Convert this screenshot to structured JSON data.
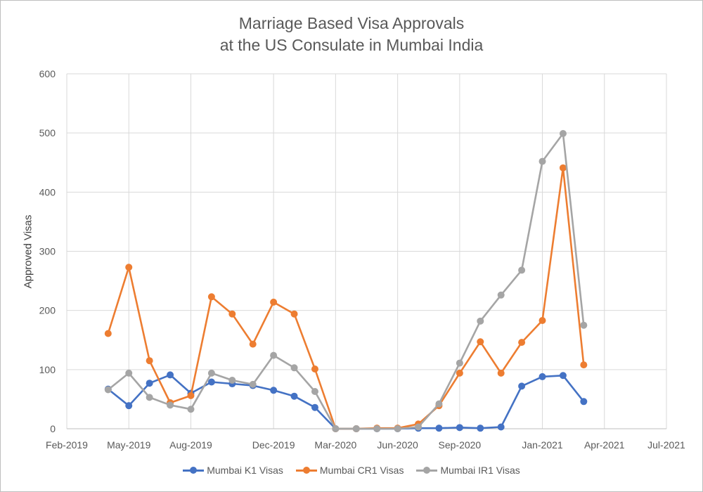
{
  "chart_data": {
    "type": "line",
    "title": [
      "Marriage Based Visa Approvals",
      "at the US Consulate in Mumbai India"
    ],
    "xlabel": "",
    "ylabel": "Approved Visas",
    "ylim": [
      0,
      600
    ],
    "yticks": [
      0,
      100,
      200,
      300,
      400,
      500,
      600
    ],
    "xlim": [
      "2019-02",
      "2021-07"
    ],
    "xticks": [
      {
        "date": "2019-02",
        "label": "Feb-2019"
      },
      {
        "date": "2019-05",
        "label": "May-2019"
      },
      {
        "date": "2019-08",
        "label": "Aug-2019"
      },
      {
        "date": "2019-12",
        "label": "Dec-2019"
      },
      {
        "date": "2020-03",
        "label": "Mar-2020"
      },
      {
        "date": "2020-06",
        "label": "Jun-2020"
      },
      {
        "date": "2020-09",
        "label": "Sep-2020"
      },
      {
        "date": "2021-01",
        "label": "Jan-2021"
      },
      {
        "date": "2021-04",
        "label": "Apr-2021"
      },
      {
        "date": "2021-07",
        "label": "Jul-2021"
      }
    ],
    "grid": "vertical and horizontal",
    "legend": "bottom",
    "x": [
      "2019-04",
      "2019-05",
      "2019-06",
      "2019-07",
      "2019-08",
      "2019-09",
      "2019-10",
      "2019-11",
      "2019-12",
      "2020-01",
      "2020-02",
      "2020-03",
      "2020-04",
      "2020-05",
      "2020-06",
      "2020-07",
      "2020-08",
      "2020-09",
      "2020-10",
      "2020-11",
      "2020-12",
      "2021-01",
      "2021-02",
      "2021-03"
    ],
    "series": [
      {
        "name": "Mumbai K1 Visas",
        "color": "#4472c4",
        "values": [
          67,
          39,
          77,
          91,
          60,
          79,
          76,
          73,
          65,
          55,
          36,
          0,
          0,
          0,
          0,
          1,
          1,
          2,
          1,
          3,
          72,
          88,
          90,
          46
        ]
      },
      {
        "name": "Mumbai CR1 Visas",
        "color": "#ed7d31",
        "values": [
          161,
          273,
          115,
          44,
          56,
          223,
          194,
          143,
          214,
          194,
          101,
          0,
          0,
          1,
          1,
          8,
          39,
          94,
          147,
          94,
          146,
          183,
          441,
          108
        ]
      },
      {
        "name": "Mumbai IR1 Visas",
        "color": "#a5a5a5",
        "values": [
          66,
          94,
          53,
          40,
          33,
          94,
          82,
          75,
          124,
          103,
          63,
          0,
          0,
          0,
          0,
          3,
          42,
          111,
          182,
          226,
          268,
          452,
          499,
          175
        ]
      }
    ]
  }
}
